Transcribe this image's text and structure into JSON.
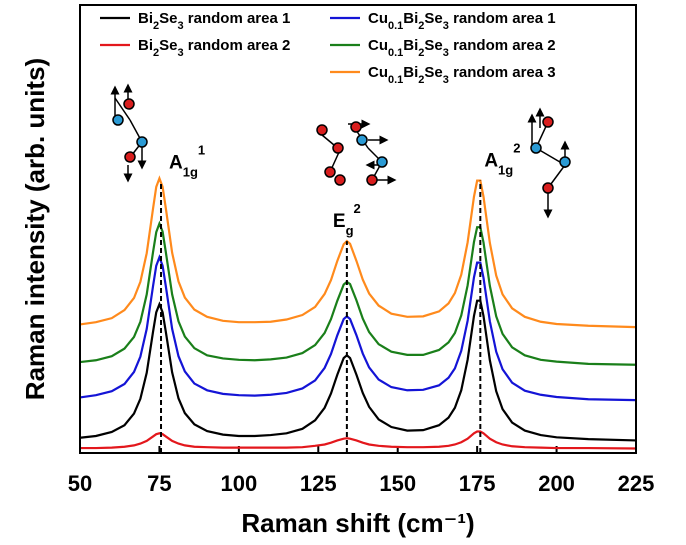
{
  "chart_data": {
    "type": "line",
    "xlabel": "Raman shift (cm⁻¹)",
    "ylabel": "Raman intensity (arb. units)",
    "xlim": [
      50,
      225
    ],
    "xticks": [
      50,
      75,
      100,
      125,
      150,
      175,
      200,
      225
    ],
    "ylim": [
      0,
      100
    ],
    "legend": "top",
    "x": [
      50,
      55,
      60,
      64,
      67,
      69,
      71,
      73,
      74,
      75,
      76,
      77,
      79,
      81,
      83,
      86,
      90,
      95,
      100,
      105,
      110,
      115,
      120,
      124,
      127,
      129,
      131,
      133,
      134,
      135,
      137,
      139,
      141,
      144,
      148,
      153,
      158,
      163,
      166,
      168,
      170,
      172,
      174,
      175,
      176,
      177,
      179,
      181,
      183,
      186,
      190,
      195,
      200,
      210,
      225
    ],
    "series": [
      {
        "name": "Bi2Se3 random area 1",
        "color": "#000000",
        "values": [
          3.4,
          3.8,
          4.7,
          6.2,
          8.8,
          12.1,
          17.9,
          27.1,
          31.4,
          33.2,
          31.4,
          27.1,
          18.0,
          12.2,
          8.9,
          6.4,
          4.9,
          4.1,
          3.8,
          3.8,
          4.0,
          4.4,
          5.4,
          7.3,
          10.1,
          13.3,
          17.5,
          21.2,
          21.8,
          21.2,
          17.5,
          13.4,
          10.3,
          7.5,
          5.8,
          5.0,
          5.1,
          6.2,
          7.9,
          10.1,
          14.0,
          20.8,
          30.6,
          34.0,
          34.0,
          30.6,
          20.7,
          13.8,
          9.8,
          6.8,
          5.0,
          4.0,
          3.5,
          3.1,
          2.8
        ]
      },
      {
        "name": "Bi2Se3 random area 2",
        "color": "#e3171c",
        "values": [
          1.1,
          1.1,
          1.2,
          1.4,
          1.7,
          2.1,
          2.7,
          3.7,
          4.2,
          4.4,
          4.2,
          3.7,
          2.7,
          2.1,
          1.7,
          1.4,
          1.3,
          1.2,
          1.2,
          1.2,
          1.2,
          1.2,
          1.3,
          1.6,
          1.9,
          2.3,
          2.8,
          3.2,
          3.3,
          3.2,
          2.8,
          2.3,
          1.9,
          1.6,
          1.4,
          1.3,
          1.3,
          1.4,
          1.6,
          1.9,
          2.4,
          3.2,
          4.4,
          4.8,
          4.8,
          4.4,
          3.2,
          2.4,
          1.9,
          1.5,
          1.3,
          1.2,
          1.1,
          1.1,
          1.0
        ]
      },
      {
        "name": "Cu0.1Bi2Se3 random area 1",
        "color": "#1414d6",
        "values": [
          12.4,
          12.9,
          13.8,
          15.4,
          18.1,
          21.5,
          27.7,
          37.3,
          41.8,
          43.7,
          41.8,
          37.3,
          27.7,
          21.6,
          18.2,
          15.5,
          14.0,
          13.2,
          12.9,
          12.8,
          13.0,
          13.4,
          14.4,
          16.2,
          19.0,
          22.1,
          26.3,
          29.9,
          30.5,
          29.9,
          26.3,
          22.2,
          19.1,
          16.4,
          14.7,
          14.0,
          14.1,
          15.1,
          16.8,
          18.9,
          22.8,
          29.5,
          39.2,
          42.5,
          42.5,
          39.1,
          29.4,
          22.6,
          18.7,
          15.7,
          13.9,
          13.0,
          12.5,
          12.0,
          11.8
        ]
      },
      {
        "name": "Cu0.1Bi2Se3 random area 2",
        "color": "#1a7f1a",
        "values": [
          20.3,
          20.7,
          21.6,
          23.3,
          25.9,
          29.3,
          35.4,
          44.9,
          49.3,
          51.2,
          49.4,
          44.9,
          35.4,
          29.4,
          26.0,
          23.4,
          21.8,
          21.1,
          20.8,
          20.7,
          20.9,
          21.3,
          22.3,
          24.1,
          26.8,
          29.9,
          34.0,
          37.6,
          38.2,
          37.7,
          34.1,
          30.0,
          27.0,
          24.3,
          22.6,
          21.9,
          21.9,
          23.0,
          24.7,
          26.8,
          30.7,
          37.4,
          47.1,
          50.4,
          50.4,
          47.0,
          37.3,
          30.5,
          26.6,
          23.6,
          21.8,
          20.8,
          20.4,
          19.9,
          19.7
        ]
      },
      {
        "name": "Cu0.1Bi2Se3 random area 3",
        "color": "#ff8a1c",
        "values": [
          28.7,
          29.2,
          30.1,
          31.9,
          34.6,
          38.2,
          44.6,
          54.6,
          59.4,
          61.3,
          59.4,
          54.7,
          44.7,
          38.3,
          34.7,
          32.0,
          30.4,
          29.5,
          29.2,
          29.2,
          29.3,
          29.8,
          30.8,
          32.6,
          35.5,
          38.6,
          42.9,
          46.6,
          47.3,
          46.7,
          42.9,
          38.7,
          35.6,
          32.9,
          31.1,
          30.4,
          30.5,
          31.6,
          33.4,
          35.7,
          39.8,
          47.0,
          57.2,
          60.8,
          60.8,
          57.2,
          46.9,
          39.6,
          35.4,
          32.3,
          30.4,
          29.3,
          28.8,
          28.4,
          28.1
        ]
      }
    ],
    "annotations": [
      {
        "base": "A",
        "sub": "1g",
        "sup": "1",
        "x": 75.5
      },
      {
        "base": "E",
        "sub": "g",
        "sup": "2",
        "x": 134
      },
      {
        "base": "A",
        "sub": "1g",
        "sup": "2",
        "x": 176
      }
    ]
  }
}
